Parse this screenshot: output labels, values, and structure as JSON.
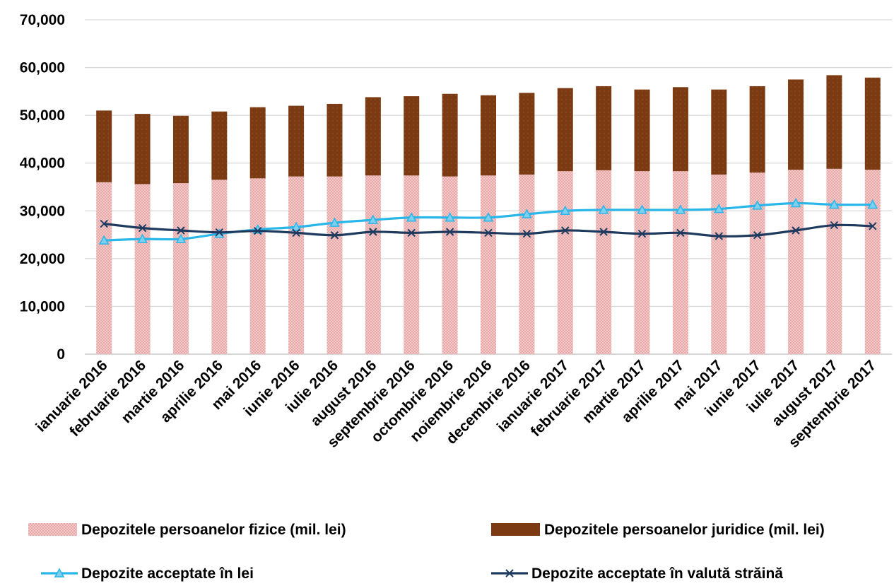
{
  "chart_data": {
    "type": "bar",
    "stacked": true,
    "title": "",
    "xlabel": "",
    "ylabel": "",
    "ylim": [
      0,
      70000
    ],
    "y_ticks": [
      "0",
      "10,000",
      "20,000",
      "30,000",
      "40,000",
      "50,000",
      "60,000",
      "70,000"
    ],
    "y_tick_values": [
      0,
      10000,
      20000,
      30000,
      40000,
      50000,
      60000,
      70000
    ],
    "grid": true,
    "legend_position": "bottom",
    "categories": [
      "ianuarie 2016",
      "februarie 2016",
      "martie 2016",
      "aprilie 2016",
      "mai 2016",
      "iunie 2016",
      "iulie 2016",
      "august 2016",
      "septembrie 2016",
      "octombrie 2016",
      "noiembrie 2016",
      "decembrie 2016",
      "ianuarie 2017",
      "februarie 2017",
      "martie 2017",
      "aprilie 2017",
      "mai 2017",
      "iunie 2017",
      "iulie 2017",
      "august 2017",
      "septembrie 2017"
    ],
    "series": [
      {
        "name": "Depozitele persoanelor fizice (mil. lei)",
        "kind": "bar",
        "color": "#e8a8a8",
        "values": [
          36000,
          35600,
          35800,
          36500,
          36800,
          37200,
          37200,
          37400,
          37400,
          37200,
          37400,
          37600,
          38300,
          38500,
          38300,
          38300,
          37600,
          38000,
          38600,
          38800,
          38600
        ]
      },
      {
        "name": "Depozitele persoanelor juridice (mil. lei)",
        "kind": "bar",
        "color": "#7b3a12",
        "values": [
          15000,
          14700,
          14100,
          14300,
          14900,
          14800,
          15200,
          16400,
          16600,
          17300,
          16800,
          17100,
          17400,
          17600,
          17100,
          17600,
          17800,
          18100,
          18900,
          19600,
          19300
        ]
      },
      {
        "name": "Depozite acceptate în lei",
        "kind": "line",
        "marker": "triangle",
        "color": "#29b6e8",
        "values": [
          23800,
          24100,
          24100,
          25200,
          26100,
          26600,
          27500,
          28100,
          28600,
          28600,
          28600,
          29300,
          30000,
          30200,
          30200,
          30200,
          30400,
          31100,
          31600,
          31300,
          31300
        ]
      },
      {
        "name": "Depozite acceptate în valută străină",
        "kind": "line",
        "marker": "x",
        "color": "#1f3a5f",
        "values": [
          27300,
          26400,
          25900,
          25500,
          25800,
          25400,
          24900,
          25600,
          25400,
          25600,
          25400,
          25200,
          25900,
          25600,
          25200,
          25400,
          24700,
          24900,
          25900,
          27000,
          26800
        ]
      }
    ]
  }
}
